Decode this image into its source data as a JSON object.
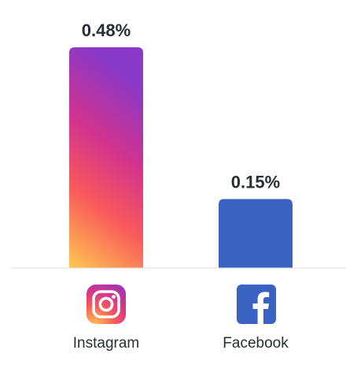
{
  "chart_data": {
    "type": "bar",
    "categories": [
      "Instagram",
      "Facebook"
    ],
    "values": [
      0.48,
      0.15
    ],
    "value_labels": [
      "0.48%",
      "0.15%"
    ],
    "icons": [
      "instagram-logo-icon",
      "facebook-logo-icon"
    ],
    "title": "",
    "xlabel": "",
    "ylabel": "",
    "ylim": [
      0,
      0.48
    ],
    "grid": false,
    "colors": {
      "instagram_gradient": [
        "#ffc852",
        "#f95a5a",
        "#d2338e",
        "#8a38c8"
      ],
      "facebook": "#3a62c2",
      "baseline": "#d9dce1",
      "text": "#2a2d34"
    }
  }
}
